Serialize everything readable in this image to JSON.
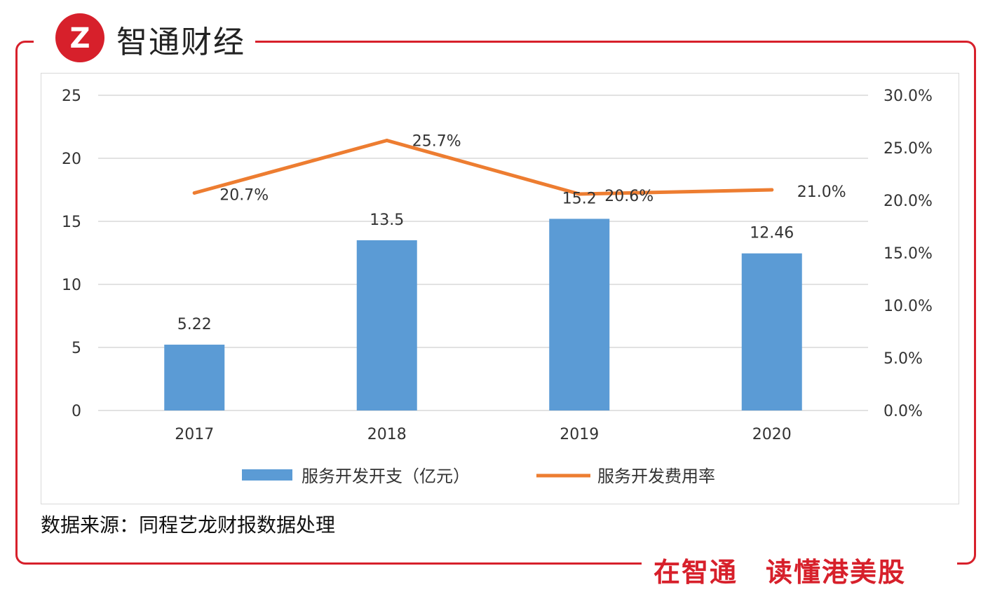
{
  "brand": {
    "logo_text": "Z",
    "name": "智通财经"
  },
  "slogan": "在智通　读懂港美股",
  "source_note": "数据来源：同程艺龙财报数据处理",
  "colors": {
    "frame": "#d7202b",
    "bar": "#5b9bd5",
    "line": "#ed7d31",
    "grid": "#d9d9d9",
    "text": "#333333"
  },
  "chart_data": {
    "type": "bar+line",
    "categories": [
      "2017",
      "2018",
      "2019",
      "2020"
    ],
    "series": [
      {
        "name": "服务开发开支（亿元）",
        "type": "bar",
        "axis": "left",
        "values": [
          5.22,
          13.5,
          15.2,
          12.46
        ],
        "labels": [
          "5.22",
          "13.5",
          "15.2",
          "12.46"
        ]
      },
      {
        "name": "服务开发费用率",
        "type": "line",
        "axis": "right",
        "values": [
          20.7,
          25.7,
          20.6,
          21.0
        ],
        "labels": [
          "20.7%",
          "25.7%",
          "20.6%",
          "21.0%"
        ]
      }
    ],
    "y_left": {
      "min": 0,
      "max": 25,
      "ticks": [
        "0",
        "5",
        "10",
        "15",
        "20",
        "25"
      ],
      "tick_values": [
        0,
        5,
        10,
        15,
        20,
        25
      ]
    },
    "y_right": {
      "min": 0,
      "max": 30,
      "ticks": [
        "0.0%",
        "5.0%",
        "10.0%",
        "15.0%",
        "20.0%",
        "25.0%",
        "30.0%"
      ],
      "tick_values": [
        0,
        5,
        10,
        15,
        20,
        25,
        30
      ]
    },
    "grid": true,
    "legend_position": "bottom"
  }
}
